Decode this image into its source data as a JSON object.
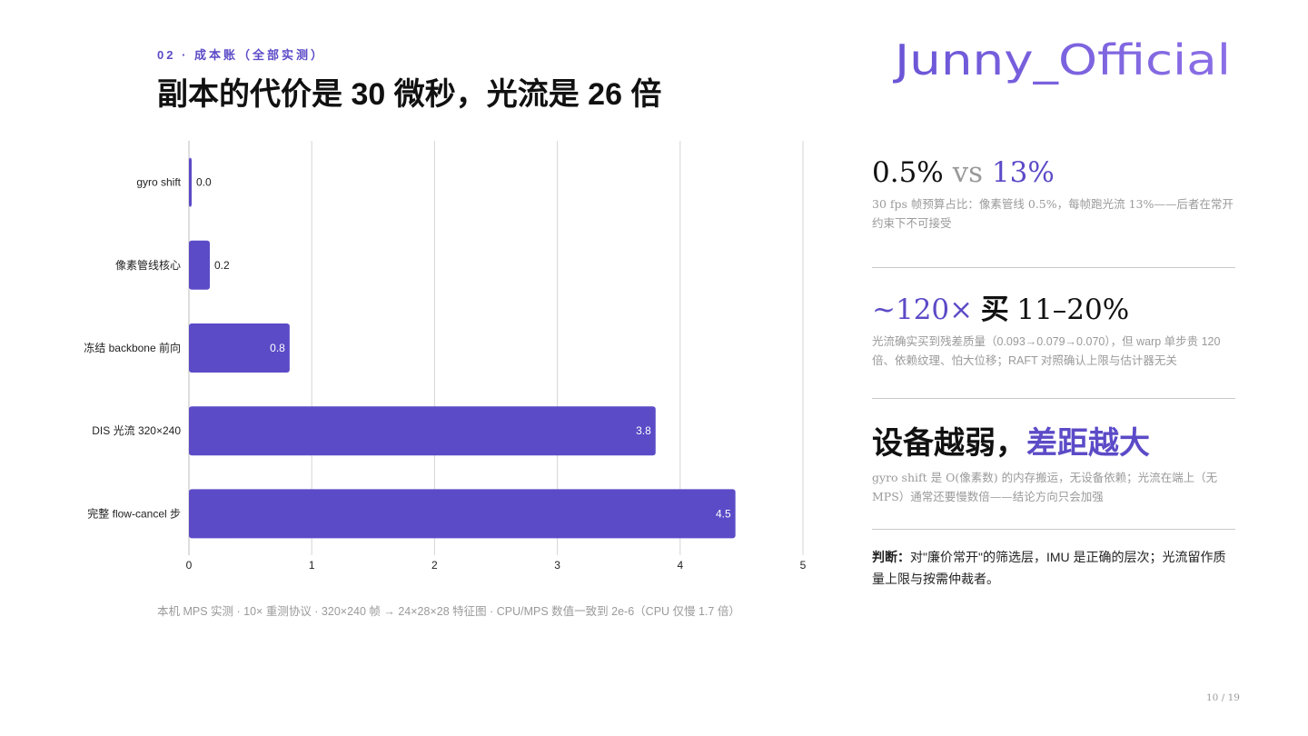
{
  "header": {
    "eyebrow": "02 · 成本账（全部实测）",
    "title": "副本的代价是 30 微秒，光流是 26 倍"
  },
  "logo_text": "Junny_Official",
  "colors": {
    "accent": "#5b4bc7",
    "muted": "#9a9a9a",
    "grid": "#d6d6d6"
  },
  "chart_data": {
    "type": "bar",
    "orientation": "horizontal",
    "categories": [
      "gyro shift",
      "像素管线核心",
      "冻结 backbone 前向",
      "DIS 光流 320×240",
      "完整 flow-cancel 步"
    ],
    "values": [
      0.02,
      0.17,
      0.82,
      3.8,
      4.45
    ],
    "value_labels": [
      "0.0",
      "0.2",
      "0.8",
      "3.8",
      "4.5"
    ],
    "xlim": [
      0,
      5
    ],
    "x_ticks": [
      0,
      1,
      2,
      3,
      4,
      5
    ],
    "grid": true,
    "title": "",
    "xlabel": "",
    "ylabel": ""
  },
  "footnote": "本机 MPS 实测 · 10× 重测协议 · 320×240 帧 → 24×28×28 特征图 · CPU/MPS 数值一致到 2e-6（CPU 仅慢 1.7 倍）",
  "stats": [
    {
      "parts": [
        "0.5%",
        " vs ",
        "13%"
      ],
      "desc": "30 fps 帧预算占比：像素管线 0.5%，每帧跑光流 13%——后者在常开约束下不可接受"
    },
    {
      "parts": [
        "~120×",
        " 买 ",
        "11–20%"
      ],
      "desc": "光流确实买到残差质量（0.093→0.079→0.070），但 warp 单步贵 120 倍、依赖纹理、怕大位移；RAFT 对照确认上限与估计器无关"
    },
    {
      "parts": [
        "设备越弱，",
        "差距越大"
      ],
      "desc": "gyro shift 是 O(像素数) 的内存搬运，无设备依赖；光流在端上（无 MPS）通常还要慢数倍——结论方向只会加强"
    }
  ],
  "verdict": {
    "label": "判断：",
    "text": "对\"廉价常开\"的筛选层，IMU 是正确的层次；光流留作质量上限与按需仲裁者。"
  },
  "pager": "10 / 19"
}
